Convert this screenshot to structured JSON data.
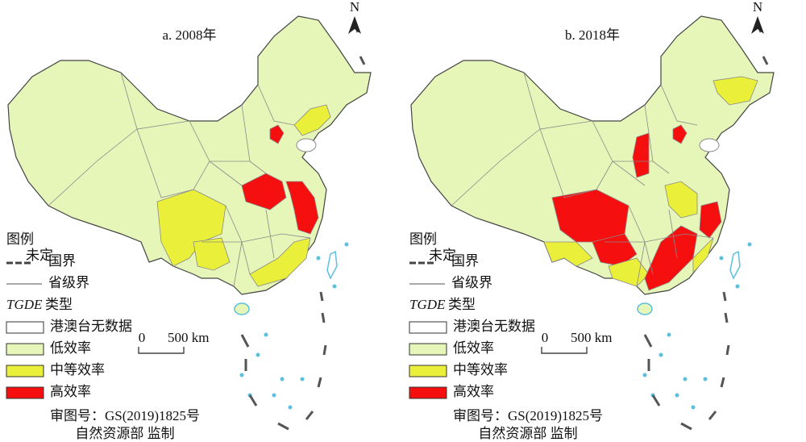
{
  "panels": [
    {
      "title": "a. 2008年",
      "north": "N",
      "legend": {
        "title": "图例",
        "undetermined": "未定",
        "border": "国界",
        "province_border": "省级界",
        "type_italic": "TGDE",
        "type_rest": "类型",
        "items": [
          "港澳台无数据",
          "低效率",
          "中等效率",
          "高效率"
        ]
      },
      "scale": {
        "zero": "0",
        "length": "500 km"
      },
      "approval": [
        "审图号：GS(2019)1825号",
        "自然资源部 监制"
      ]
    },
    {
      "title": "b. 2018年",
      "north": "N",
      "legend": {
        "title": "图例",
        "undetermined": "未定",
        "border": "国界",
        "province_border": "省级界",
        "type_italic": "TGDE",
        "type_rest": "类型",
        "items": [
          "港澳台无数据",
          "低效率",
          "中等效率",
          "高效率"
        ]
      },
      "scale": {
        "zero": "0",
        "length": "500 km"
      },
      "approval": [
        "审图号：GS(2019)1825号",
        "自然资源部 监制"
      ]
    }
  ]
}
